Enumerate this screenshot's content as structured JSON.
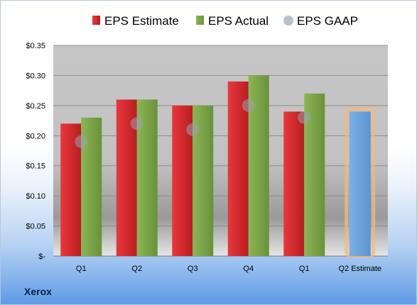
{
  "company": "Xerox",
  "chart_data": {
    "type": "bar",
    "categories": [
      "Q1",
      "Q2",
      "Q3",
      "Q4",
      "Q1",
      "Q2 Estimate"
    ],
    "series": [
      {
        "name": "EPS Estimate",
        "color": "#d9262b",
        "values": [
          0.22,
          0.26,
          0.25,
          0.29,
          0.24,
          null
        ]
      },
      {
        "name": "EPS Actual",
        "color": "#7fa84a",
        "values": [
          0.23,
          0.26,
          0.25,
          0.3,
          0.27,
          null
        ]
      },
      {
        "name": "EPS GAAP",
        "color": "#b0b8c2",
        "marker": "circle",
        "values": [
          0.19,
          0.22,
          0.21,
          0.25,
          0.23,
          null
        ]
      }
    ],
    "forecast": {
      "category": "Q2 Estimate",
      "value": 0.24,
      "color": "#6ea3dc",
      "glow": "#f6b87a"
    },
    "ylim": [
      0,
      0.35
    ],
    "yticks": [
      0,
      0.05,
      0.1,
      0.15,
      0.2,
      0.25,
      0.3,
      0.35
    ],
    "ytick_labels": [
      "$-",
      "$0.05",
      "$0.10",
      "$0.15",
      "$0.20",
      "$0.25",
      "$0.30",
      "$0.35"
    ],
    "grid": true,
    "legend": "top"
  }
}
